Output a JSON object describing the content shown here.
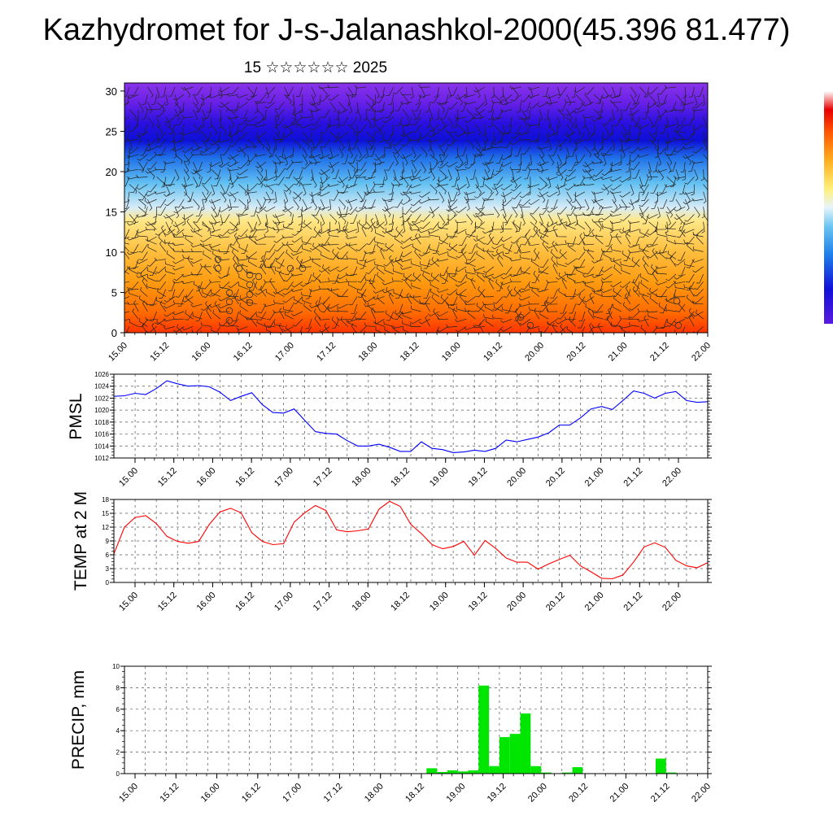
{
  "title": "Kazhydromet for J-s-Jalanashkol-2000(45.396 81.477)",
  "subtitle": "15 ☆☆☆☆☆☆ 2025",
  "time_ticks": [
    "15.00",
    "15.12",
    "16.00",
    "16.12",
    "17.00",
    "17.12",
    "18.00",
    "18.12",
    "19.00",
    "19.12",
    "20.00",
    "20.12",
    "21.00",
    "21.12",
    "22.00"
  ],
  "colors": {
    "pmsl_line": "#0000ff",
    "temp_line": "#ff0000",
    "precip_bar": "#00e600"
  },
  "chart_data": [
    {
      "type": "heatmap",
      "name_id": "cross-section",
      "title": "",
      "xlabel": "",
      "ylabel": "",
      "x_ticks": [
        "15.00",
        "15.12",
        "16.00",
        "16.12",
        "17.00",
        "17.12",
        "18.00",
        "18.12",
        "19.00",
        "19.12",
        "20.00",
        "20.12",
        "21.00",
        "21.12",
        "22.00"
      ],
      "y_ticks": [
        0,
        5,
        10,
        15,
        20,
        25,
        30
      ],
      "ylim": [
        0,
        31
      ],
      "xlim": [
        0,
        14
      ],
      "overlay": "wind barbs",
      "colormap": [
        "#ff2a00",
        "#ff8a00",
        "#ffc23a",
        "#ffe98a",
        "#cde8f5",
        "#3cb0ef",
        "#1e4fe0",
        "#1000d8",
        "#7a2ae8"
      ]
    },
    {
      "type": "line",
      "ylabel": "PMSL",
      "ylim": [
        1012,
        1026
      ],
      "y_ticks": [
        1012,
        1014,
        1016,
        1018,
        1020,
        1022,
        1024,
        1026
      ],
      "xlim": [
        0,
        14
      ],
      "x": [
        0,
        0.25,
        0.5,
        0.75,
        1,
        1.25,
        1.5,
        1.75,
        2,
        2.25,
        2.5,
        2.75,
        3,
        3.25,
        3.5,
        3.75,
        4,
        4.25,
        4.5,
        4.75,
        5,
        5.25,
        5.5,
        5.75,
        6,
        6.25,
        6.5,
        6.75,
        7,
        7.25,
        7.5,
        7.75,
        8,
        8.25,
        8.5,
        8.75,
        9,
        9.25,
        9.5,
        9.75,
        10,
        10.25,
        10.5,
        10.75,
        11,
        11.25,
        11.5,
        11.75,
        12,
        12.25,
        12.5,
        12.75,
        13,
        13.25,
        13.5
      ],
      "values": [
        1022.3,
        1022.4,
        1022.8,
        1022.6,
        1023.6,
        1024.9,
        1024.4,
        1024.0,
        1024.1,
        1023.9,
        1023.0,
        1021.6,
        1022.3,
        1022.9,
        1020.9,
        1019.6,
        1019.5,
        1020.2,
        1018.3,
        1016.4,
        1016.1,
        1016.0,
        1014.9,
        1014.0,
        1014.0,
        1014.3,
        1013.8,
        1013.1,
        1013.1,
        1014.7,
        1013.6,
        1013.4,
        1012.9,
        1013.0,
        1013.3,
        1013.1,
        1013.6,
        1015.0,
        1014.7,
        1015.1,
        1015.5,
        1016.2,
        1017.5,
        1017.5,
        1018.7,
        1020.2,
        1020.6,
        1020.1,
        1021.6,
        1023.2,
        1022.8,
        1022.0,
        1022.8,
        1023.1,
        1021.6
      ],
      "extra": [
        [
          13.75,
          1021.3
        ],
        [
          14,
          1021.4
        ]
      ]
    },
    {
      "type": "line",
      "ylabel": "TEMP at 2 M",
      "ylim": [
        0,
        18
      ],
      "y_ticks": [
        0,
        3,
        6,
        9,
        12,
        15,
        18
      ],
      "xlim": [
        0,
        14
      ],
      "x": [
        0,
        0.25,
        0.5,
        0.75,
        1,
        1.25,
        1.5,
        1.75,
        2,
        2.25,
        2.5,
        2.75,
        3,
        3.25,
        3.5,
        3.75,
        4,
        4.25,
        4.5,
        4.75,
        5,
        5.25,
        5.5,
        5.75,
        6,
        6.25,
        6.5,
        6.75,
        7,
        7.25,
        7.5,
        7.75,
        8,
        8.25,
        8.5,
        8.75,
        9,
        9.25,
        9.5,
        9.75,
        10,
        10.25,
        10.5,
        10.75,
        11,
        11.25,
        11.5,
        11.75,
        12,
        12.25,
        12.5,
        12.75,
        13,
        13.25,
        13.5,
        13.75,
        14
      ],
      "values": [
        6.2,
        12.0,
        14.1,
        14.5,
        12.8,
        10.0,
        8.9,
        8.5,
        8.9,
        12.6,
        15.3,
        16.1,
        15.1,
        10.8,
        8.9,
        8.2,
        8.4,
        13.1,
        15.1,
        16.7,
        15.6,
        11.4,
        11.0,
        11.2,
        11.6,
        15.9,
        17.6,
        16.5,
        12.6,
        10.6,
        8.2,
        7.3,
        7.8,
        8.9,
        5.9,
        9.1,
        7.4,
        5.3,
        4.4,
        4.4,
        2.9,
        4.0,
        5.0,
        5.9,
        3.6,
        2.3,
        0.9,
        0.8,
        1.6,
        4.4,
        7.7,
        8.6,
        7.6,
        4.8,
        3.6,
        3.2,
        4.3
      ]
    },
    {
      "type": "bar",
      "ylabel": "PRECIP, mm",
      "ylim": [
        0,
        10
      ],
      "y_ticks": [
        0,
        2,
        4,
        6,
        8,
        10
      ],
      "xlim": [
        0,
        14
      ],
      "bar_width": 0.25,
      "x": [
        7.25,
        7.5,
        7.75,
        8,
        8.25,
        8.5,
        8.75,
        9,
        9.25,
        9.5,
        9.75,
        10,
        10.25,
        10.5,
        10.75,
        11,
        11.25,
        11.5,
        11.75,
        12,
        12.25,
        12.5,
        12.75,
        13,
        13.25
      ],
      "values": [
        0.5,
        0.15,
        0.3,
        0.2,
        0.3,
        8.2,
        0.7,
        3.4,
        3.7,
        5.6,
        0.7,
        0.1,
        0.0,
        0.1,
        0.6,
        0.0,
        0.0,
        0.0,
        0.0,
        0.0,
        0.0,
        0.0,
        1.4,
        0.1,
        0.0
      ]
    }
  ]
}
